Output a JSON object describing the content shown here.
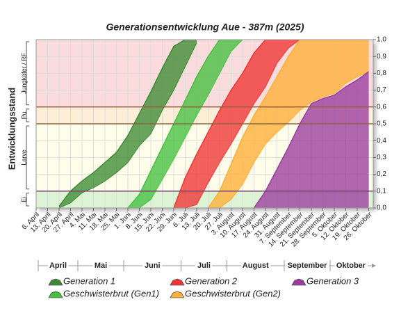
{
  "chart_data": {
    "type": "band-area",
    "title": "Generationsentwicklung Aue - 387m (2025)",
    "y_label": "Entwicklungsstand",
    "categories": [
      "6. April",
      "13. April",
      "20. April",
      "27. April",
      "4. Mai",
      "11. Mai",
      "18. Mai",
      "25. Mai",
      "1. Juni",
      "8. Juni",
      "15. Juni",
      "22. Juni",
      "29. Juni",
      "6. Juli",
      "13. Juli",
      "20. Juli",
      "27. Juli",
      "3. August",
      "10. August",
      "17. August",
      "24. August",
      "31. August",
      "7. September",
      "14. September",
      "21. September",
      "28. September",
      "5. Oktober",
      "12. Oktober",
      "19. Oktober",
      "26. Oktober"
    ],
    "months": [
      "April",
      "Mai",
      "Juni",
      "Juli",
      "August",
      "September",
      "Oktober"
    ],
    "ylim": [
      0,
      1
    ],
    "yticks": [
      {
        "value": 0,
        "label": "0,0"
      },
      {
        "value": 0.1,
        "label": "0,1"
      },
      {
        "value": 0.2,
        "label": "0,2"
      },
      {
        "value": 0.3,
        "label": "0,3"
      },
      {
        "value": 0.4,
        "label": "0,4"
      },
      {
        "value": 0.5,
        "label": "0,5"
      },
      {
        "value": 0.6,
        "label": "0,6"
      },
      {
        "value": 0.7,
        "label": "0,7"
      },
      {
        "value": 0.8,
        "label": "0,8"
      },
      {
        "value": 0.9,
        "label": "0,9"
      },
      {
        "value": 1,
        "label": "1,0"
      }
    ],
    "grid": true,
    "stages": [
      {
        "label": "Ei",
        "from": 0,
        "to": 0.1,
        "color": "#dcf3d4",
        "line": "#7a4070"
      },
      {
        "label": "Larve",
        "from": 0.1,
        "to": 0.5,
        "color": "#fdfde9",
        "line": "#8a6840"
      },
      {
        "label": "Pu",
        "from": 0.5,
        "to": 0.6,
        "color": "#fdeed8",
        "line": "#9a6040"
      },
      {
        "label": "Jungkäfer / RF",
        "from": 0.6,
        "to": 1,
        "color": "#fbdcdc",
        "line": "#9a6040"
      }
    ],
    "series": [
      {
        "name": "Generation 1",
        "color": "#3d8a35",
        "values": [
          null,
          null,
          0.01,
          0.1,
          0.16,
          0.21,
          0.27,
          0.33,
          0.43,
          0.56,
          0.69,
          0.83,
          0.96,
          1.0,
          1.0,
          null,
          null,
          null,
          null,
          null,
          null,
          null,
          null,
          null,
          null,
          null,
          null,
          null,
          null,
          null
        ],
        "lower": [
          null,
          null,
          0,
          0.03,
          0.09,
          0.12,
          0.16,
          0.21,
          0.27,
          0.37,
          0.44,
          0.58,
          0.7,
          0.84,
          0.98,
          null,
          null,
          null,
          null,
          null,
          null,
          null,
          null,
          null,
          null,
          null,
          null,
          null,
          null,
          null
        ]
      },
      {
        "name": "Geschwisterbrut (Gen1)",
        "color": "#45c040",
        "values": [
          null,
          null,
          null,
          null,
          null,
          null,
          null,
          null,
          0,
          0.08,
          0.22,
          0.36,
          0.5,
          0.64,
          0.78,
          0.9,
          1.0,
          1.0,
          1.0,
          null,
          null,
          null,
          null,
          null,
          null,
          null,
          null,
          null,
          null,
          null
        ],
        "lower": [
          null,
          null,
          null,
          null,
          null,
          null,
          null,
          null,
          0,
          0,
          0.05,
          0.17,
          0.29,
          0.42,
          0.55,
          0.67,
          0.8,
          0.93,
          1.0,
          null,
          null,
          null,
          null,
          null,
          null,
          null,
          null,
          null,
          null,
          null
        ]
      },
      {
        "name": "Generation 2",
        "color": "#f03434",
        "values": [
          null,
          null,
          null,
          null,
          null,
          null,
          null,
          null,
          null,
          null,
          null,
          null,
          0,
          0.18,
          0.32,
          0.45,
          0.58,
          0.7,
          0.8,
          0.92,
          1.0,
          1.0,
          1.0,
          1.0,
          null,
          null,
          null,
          null,
          null,
          null
        ],
        "lower": [
          null,
          null,
          null,
          null,
          null,
          null,
          null,
          null,
          null,
          null,
          null,
          null,
          0,
          0,
          0.02,
          0.15,
          0.27,
          0.38,
          0.5,
          0.62,
          0.72,
          0.86,
          0.95,
          1.0,
          null,
          null,
          null,
          null,
          null,
          null
        ]
      },
      {
        "name": "Geschwisterbrut (Gen2)",
        "color": "#ffb038",
        "values": [
          null,
          null,
          null,
          null,
          null,
          null,
          null,
          null,
          null,
          null,
          null,
          null,
          null,
          null,
          null,
          0,
          0.1,
          0.26,
          0.42,
          0.55,
          0.66,
          0.78,
          0.9,
          1.0,
          1.0,
          1.0,
          1.0,
          1.0,
          1.0,
          1.0
        ],
        "lower": [
          null,
          null,
          null,
          null,
          null,
          null,
          null,
          null,
          null,
          null,
          null,
          null,
          null,
          null,
          null,
          0,
          0,
          0.05,
          0.14,
          0.27,
          0.38,
          0.45,
          0.51,
          0.58,
          0.63,
          0.66,
          0.68,
          0.74,
          0.78,
          0.81
        ]
      },
      {
        "name": "Generation 3",
        "color": "#9a3c9e",
        "values": [
          null,
          null,
          null,
          null,
          null,
          null,
          null,
          null,
          null,
          null,
          null,
          null,
          null,
          null,
          null,
          null,
          null,
          null,
          null,
          0,
          0.1,
          0.23,
          0.36,
          0.5,
          0.62,
          0.65,
          0.67,
          0.72,
          0.76,
          0.81
        ],
        "lower": [
          null,
          null,
          null,
          null,
          null,
          null,
          null,
          null,
          null,
          null,
          null,
          null,
          null,
          null,
          null,
          null,
          null,
          null,
          null,
          0,
          0,
          0,
          0,
          0,
          0,
          0,
          0,
          0,
          0,
          0
        ]
      }
    ]
  }
}
